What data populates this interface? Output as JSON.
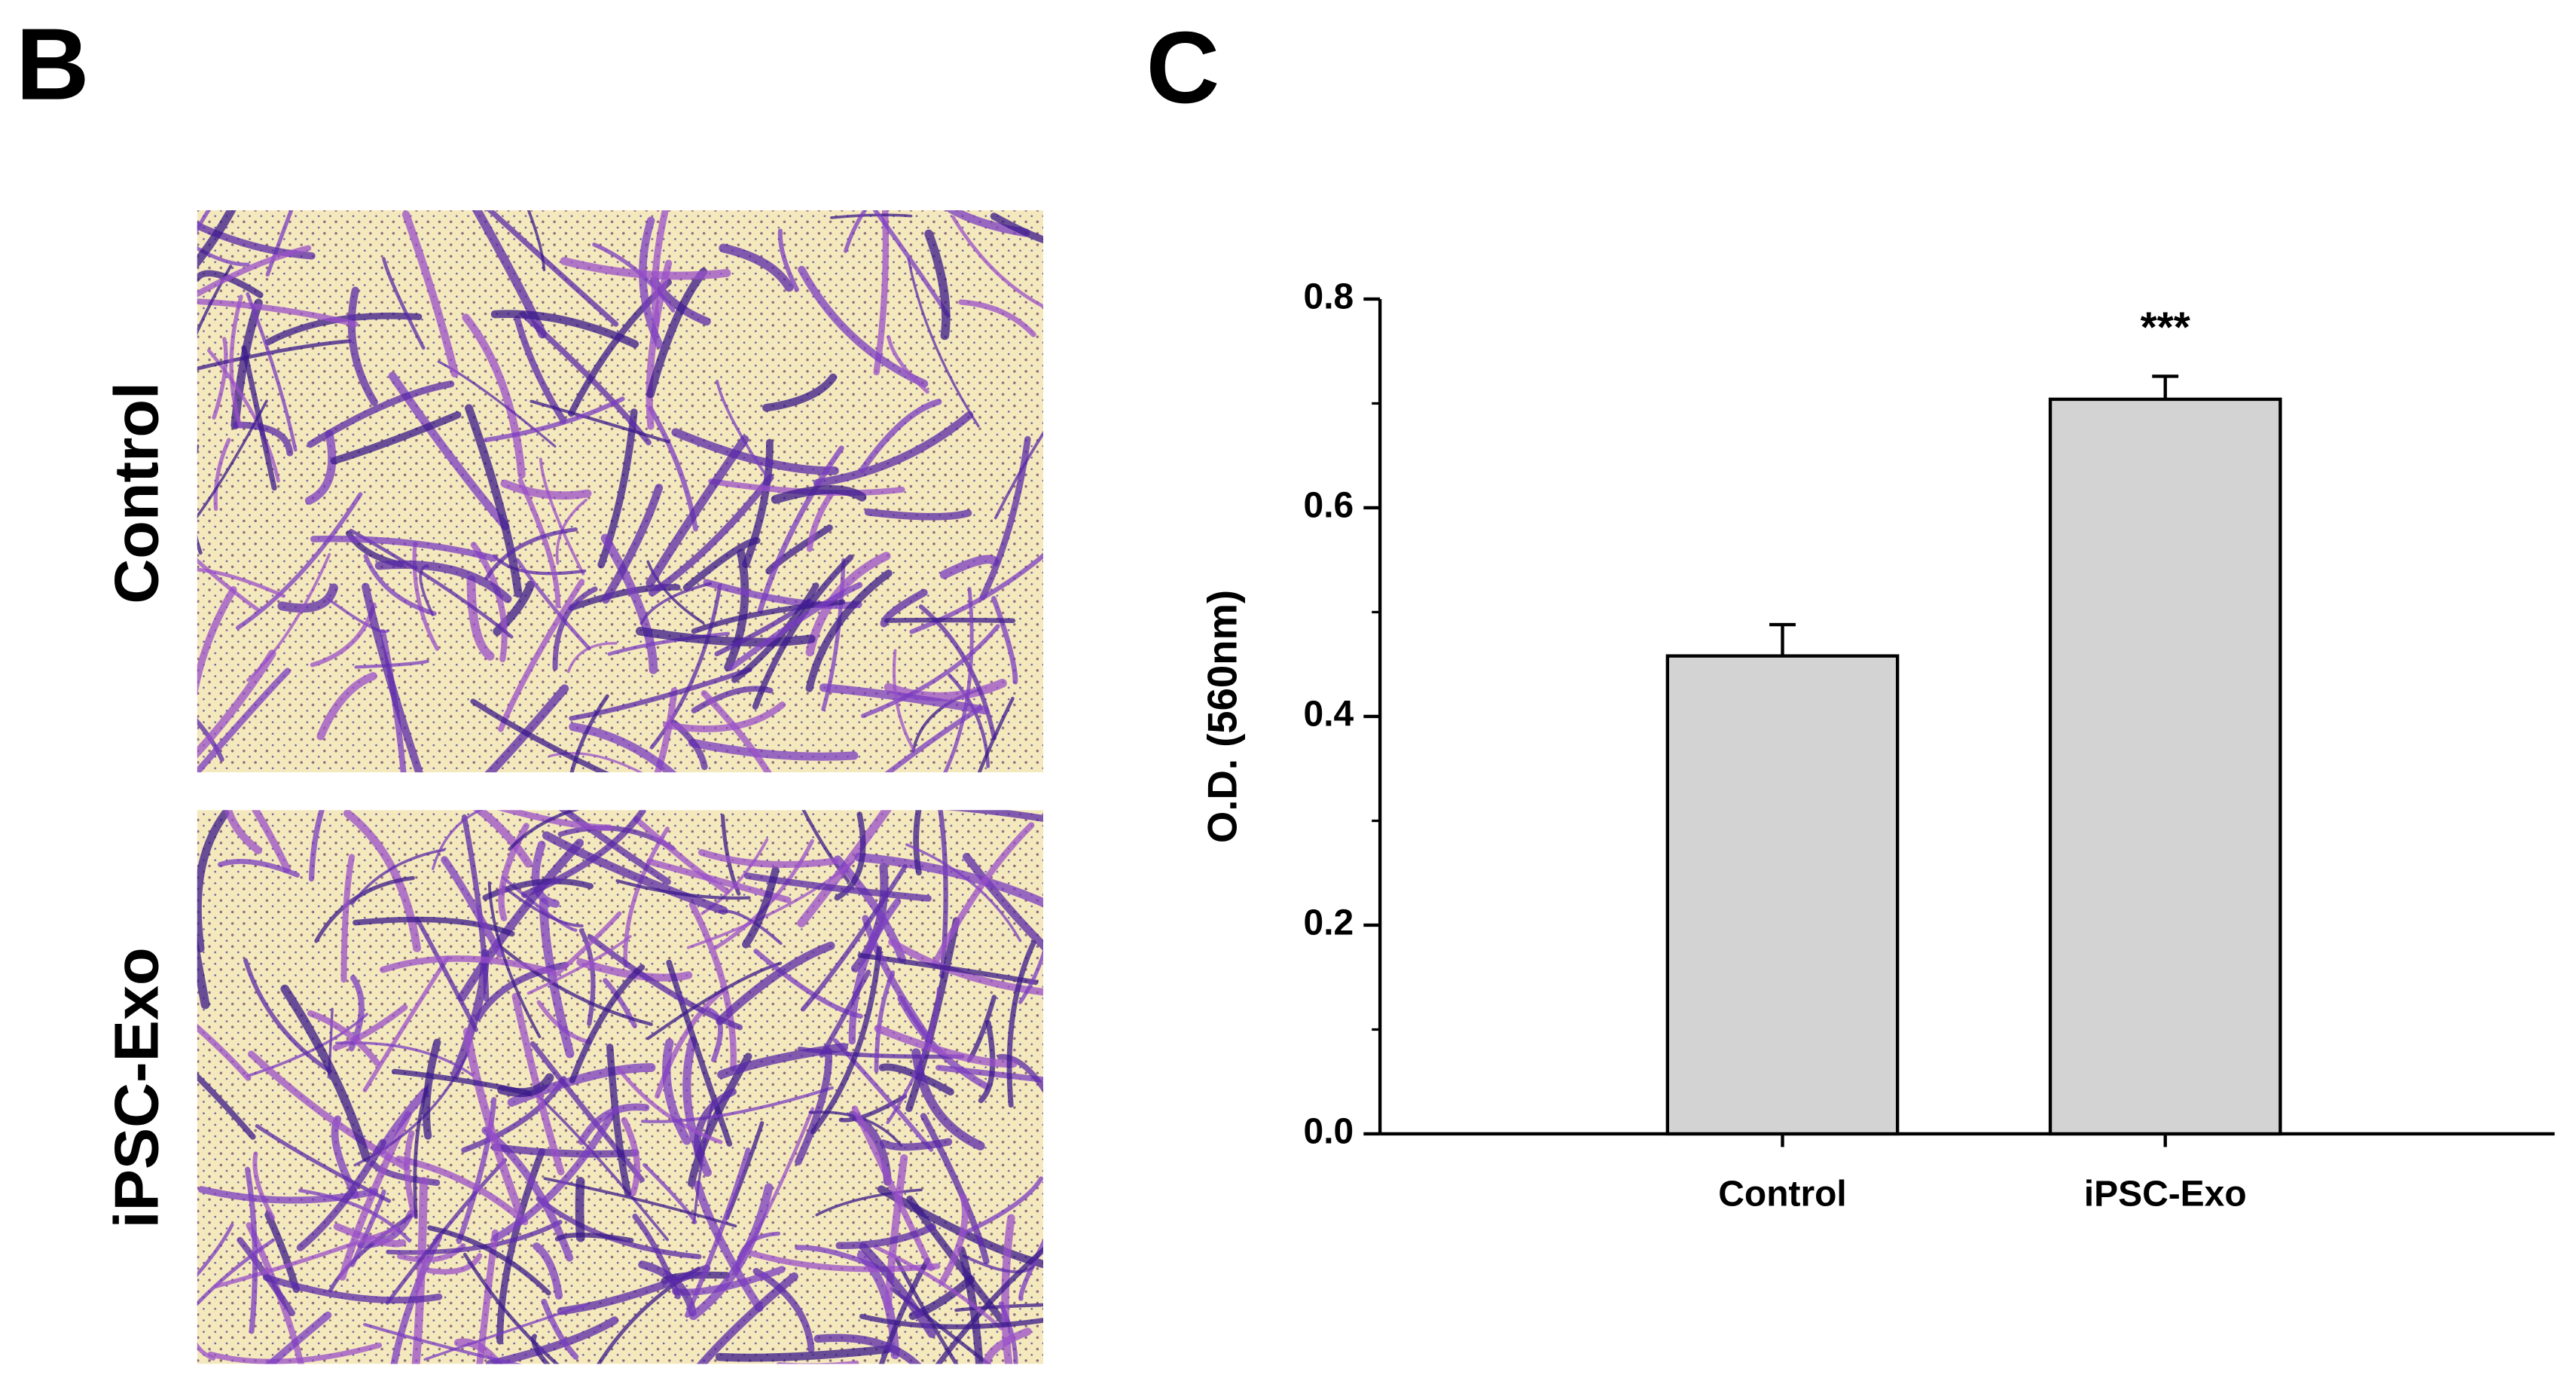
{
  "panel_labels": [
    "B",
    "C"
  ],
  "images": {
    "labels": [
      "Control",
      "iPSC-Exo"
    ]
  },
  "chart_data": {
    "type": "bar",
    "y_label": "O.D. (560nm)",
    "categories": [
      "Control",
      "iPSC-Exo"
    ],
    "values": [
      0.458,
      0.704
    ],
    "errors": [
      0.03,
      0.022
    ],
    "color": "#d3d3d3",
    "ylim": [
      0,
      0.8
    ],
    "yticks": [
      {
        "value": 0,
        "label": "0.0"
      },
      0.2,
      0.4,
      0.6,
      0.8
    ],
    "minor_yticks": [
      0.1,
      0.3,
      0.5,
      0.7
    ],
    "annotations": [
      {
        "text": "***",
        "x": "iPSC-Exo"
      }
    ],
    "grid": false
  }
}
